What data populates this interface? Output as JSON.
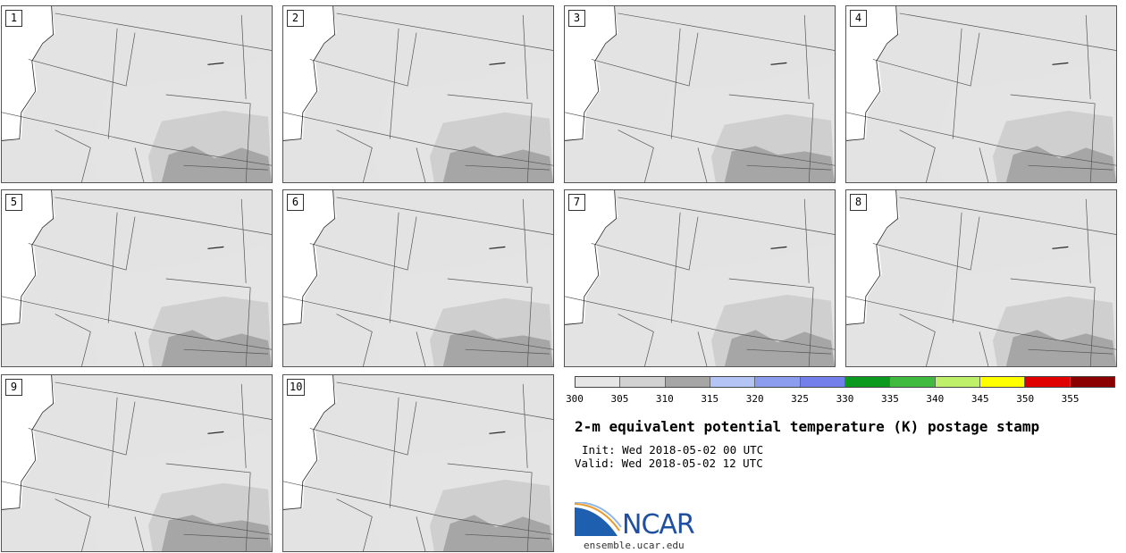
{
  "panels": [
    {
      "label": "1"
    },
    {
      "label": "2"
    },
    {
      "label": "3"
    },
    {
      "label": "4"
    },
    {
      "label": "5"
    },
    {
      "label": "6"
    },
    {
      "label": "7"
    },
    {
      "label": "8"
    },
    {
      "label": "9"
    },
    {
      "label": "10"
    }
  ],
  "colorbar": {
    "colors": [
      "#e6e6e6",
      "#d2d2d2",
      "#a6a6a6",
      "#b3c4f5",
      "#8c9df0",
      "#7380ec",
      "#0c9a1e",
      "#40bb40",
      "#bff06a",
      "#ffff00",
      "#e00000",
      "#8b0000"
    ],
    "ticks": [
      "300",
      "305",
      "310",
      "315",
      "320",
      "325",
      "330",
      "335",
      "340",
      "345",
      "350",
      "355"
    ]
  },
  "title": "2-m equivalent potential temperature (K) postage stamp",
  "init": "Init: Wed 2018-05-02 00 UTC",
  "valid": "Valid: Wed 2018-05-02 12 UTC",
  "logo": {
    "word": "NCAR",
    "site": "ensemble.ucar.edu"
  },
  "colors": {
    "land_light": "#e3e3e3",
    "land_mid": "#cfcfcf",
    "land_dark": "#a6a6a6",
    "ocean": "#ffffff"
  }
}
